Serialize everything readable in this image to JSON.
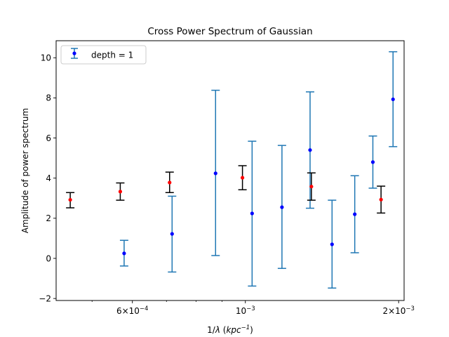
{
  "chart_data": {
    "type": "scatter",
    "title": "Cross Power Spectrum of Gaussian",
    "xlabel_prefix": "1/",
    "xlabel_lambda": "λ",
    "xlabel_open": " (",
    "xlabel_unit": "kpc",
    "xlabel_exp": "−1",
    "xlabel_close": ")",
    "ylabel": "Amplitude of power spectrum",
    "xscale": "log",
    "xlim": [
      0.000425,
      0.00205
    ],
    "ylim": [
      -2.1,
      10.85
    ],
    "grid": false,
    "legend_placement": "top-left",
    "x_ticks": [
      {
        "value": 0.0006,
        "base": "6×10",
        "exp": "−4"
      },
      {
        "value": 0.001,
        "base": "10",
        "exp": "−3"
      },
      {
        "value": 0.002,
        "base": "2×10",
        "exp": "−3"
      }
    ],
    "y_ticks": [
      {
        "value": -2,
        "label": "−2"
      },
      {
        "value": 0,
        "label": "0"
      },
      {
        "value": 2,
        "label": "2"
      },
      {
        "value": 4,
        "label": "4"
      },
      {
        "value": 6,
        "label": "6"
      },
      {
        "value": 8,
        "label": "8"
      },
      {
        "value": 10,
        "label": "10"
      }
    ],
    "series": [
      {
        "name": "depth = 1",
        "marker_color": "#0000ff",
        "errorbar_color": "#1f77b4",
        "points": [
          {
            "x": 0.000578,
            "y": 0.25,
            "lo": -0.38,
            "hi": 0.9
          },
          {
            "x": 0.000718,
            "y": 1.22,
            "lo": -0.68,
            "hi": 3.1
          },
          {
            "x": 0.000874,
            "y": 4.24,
            "lo": 0.14,
            "hi": 8.38
          },
          {
            "x": 0.001031,
            "y": 2.24,
            "lo": -1.38,
            "hi": 5.84
          },
          {
            "x": 0.00118,
            "y": 2.55,
            "lo": -0.5,
            "hi": 5.63
          },
          {
            "x": 0.00134,
            "y": 5.4,
            "lo": 2.5,
            "hi": 8.3
          },
          {
            "x": 0.00148,
            "y": 0.7,
            "lo": -1.48,
            "hi": 2.9
          },
          {
            "x": 0.00164,
            "y": 2.2,
            "lo": 0.28,
            "hi": 4.12
          },
          {
            "x": 0.00178,
            "y": 4.8,
            "lo": 3.5,
            "hi": 6.1
          },
          {
            "x": 0.00195,
            "y": 7.93,
            "lo": 5.57,
            "hi": 10.3
          }
        ]
      },
      {
        "marker_color": "#ff0000",
        "errorbar_color": "#000000",
        "points": [
          {
            "x": 0.000453,
            "y": 2.92,
            "lo": 2.52,
            "hi": 3.28
          },
          {
            "x": 0.000568,
            "y": 3.33,
            "lo": 2.9,
            "hi": 3.76
          },
          {
            "x": 0.00071,
            "y": 3.78,
            "lo": 3.28,
            "hi": 4.3
          },
          {
            "x": 0.000987,
            "y": 4.02,
            "lo": 3.42,
            "hi": 4.62
          },
          {
            "x": 0.001348,
            "y": 3.58,
            "lo": 2.9,
            "hi": 4.26
          },
          {
            "x": 0.001847,
            "y": 2.93,
            "lo": 2.26,
            "hi": 3.6
          }
        ]
      }
    ]
  }
}
